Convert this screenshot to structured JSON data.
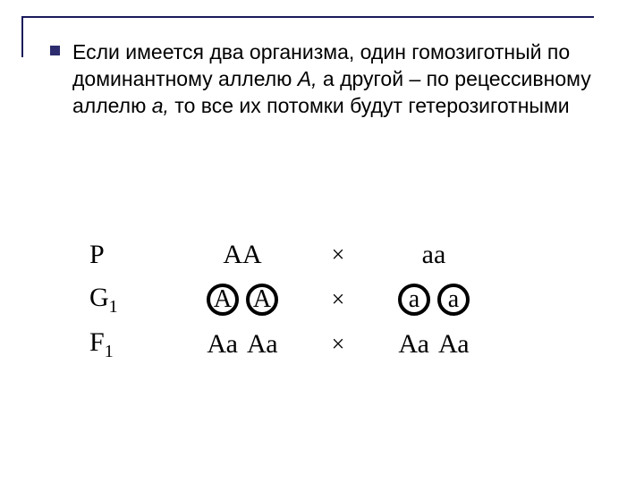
{
  "frame": {
    "line_color": "#1a1a5c"
  },
  "bullet": {
    "color": "#2c2c6e"
  },
  "text": {
    "main": "Если имеется два организма, один гомозиготный по доминантному аллелю ",
    "allele_A": "А,",
    "mid": " а другой – по рецессивному аллелю ",
    "allele_a": "а,",
    "tail": " то все их потомки будут гетерозиготными",
    "font_size": 23,
    "color": "#000000"
  },
  "diagram": {
    "font_family": "Times New Roman",
    "font_size": 30,
    "color": "#000000",
    "cross_symbol": "×",
    "rows": {
      "P": {
        "label": "P",
        "left": "АА",
        "right": "аа"
      },
      "G1": {
        "label_main": "G",
        "label_sub": "1",
        "left_gametes": [
          "А",
          "А"
        ],
        "right_gametes": [
          "а",
          "а"
        ],
        "circle_border": "#000000",
        "circle_width": 4
      },
      "F1": {
        "label_main": "F",
        "label_sub": "1",
        "left_offspring": [
          "Аа",
          "Аа"
        ],
        "right_offspring": [
          "Аа",
          "Аа"
        ]
      }
    }
  }
}
